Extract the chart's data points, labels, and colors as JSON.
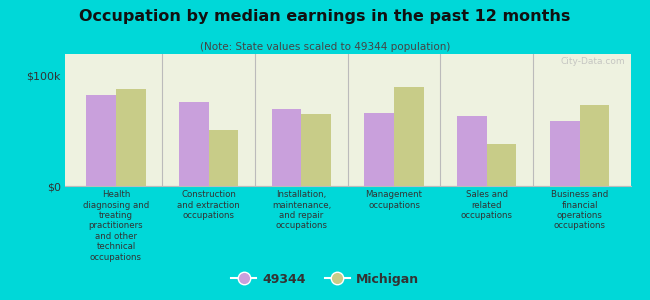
{
  "title": "Occupation by median earnings in the past 12 months",
  "subtitle": "(Note: State values scaled to 49344 population)",
  "background_color": "#00d8d8",
  "plot_bg_color": "#eef2e0",
  "bar_color_49344": "#c9a0dc",
  "bar_color_michigan": "#c8cc88",
  "ytick_labels": [
    "$0",
    "$100k"
  ],
  "yticks": [
    0,
    100000
  ],
  "ylim": [
    0,
    120000
  ],
  "categories": [
    "Health\ndiagnosing and\ntreating\npractitioners\nand other\ntechnical\noccupations",
    "Construction\nand extraction\noccupations",
    "Installation,\nmaintenance,\nand repair\noccupations",
    "Management\noccupations",
    "Sales and\nrelated\noccupations",
    "Business and\nfinancial\noperations\noccupations"
  ],
  "values_49344": [
    83000,
    76000,
    70000,
    66000,
    64000,
    59000
  ],
  "values_michigan": [
    88000,
    51000,
    65000,
    90000,
    38000,
    74000
  ],
  "legend_labels": [
    "49344",
    "Michigan"
  ],
  "watermark": "City-Data.com"
}
